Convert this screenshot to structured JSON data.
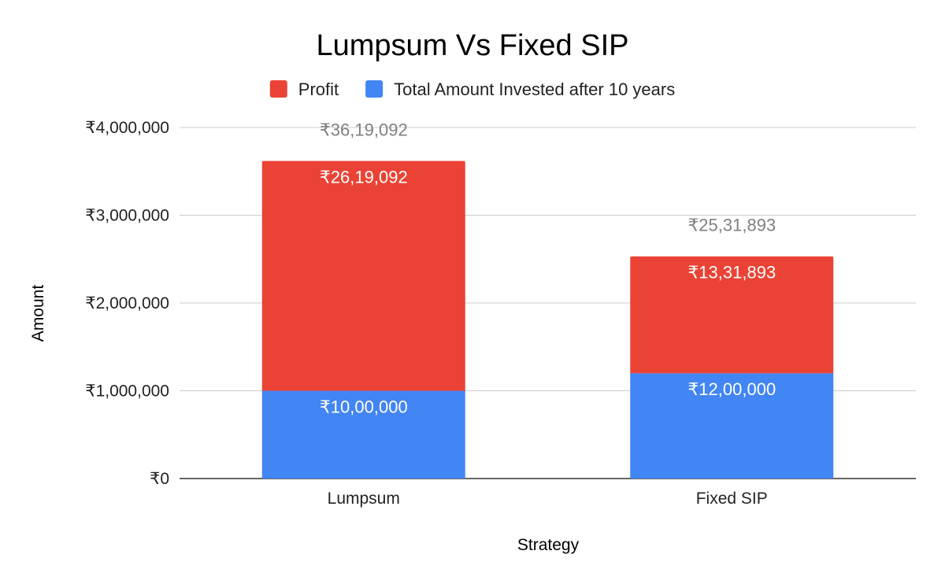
{
  "chart_data": {
    "type": "bar",
    "stacked": true,
    "title": "Lumpsum Vs Fixed SIP",
    "xlabel": "Strategy",
    "ylabel": "Amount",
    "categories": [
      "Lumpsum",
      "Fixed SIP"
    ],
    "series": [
      {
        "name": "Total Amount Invested after 10 years",
        "color": "#4285f4",
        "values": [
          1000000,
          1200000
        ],
        "labels": [
          "₹10,00,000",
          "₹12,00,000"
        ]
      },
      {
        "name": "Profit",
        "color": "#ea4335",
        "values": [
          2619092,
          1331893
        ],
        "labels": [
          "₹26,19,092",
          "₹13,31,893"
        ]
      }
    ],
    "totals": {
      "values": [
        3619092,
        2531893
      ],
      "labels": [
        "₹36,19,092",
        "₹25,31,893"
      ]
    },
    "ylim": [
      0,
      4000000
    ],
    "yticks": [
      0,
      1000000,
      2000000,
      3000000,
      4000000
    ],
    "ytick_labels": [
      "₹0",
      "₹1,000,000",
      "₹2,000,000",
      "₹3,000,000",
      "₹4,000,000"
    ],
    "legend": {
      "position": "top",
      "order": [
        "Profit",
        "Total Amount Invested after 10 years"
      ]
    },
    "grid": true
  }
}
